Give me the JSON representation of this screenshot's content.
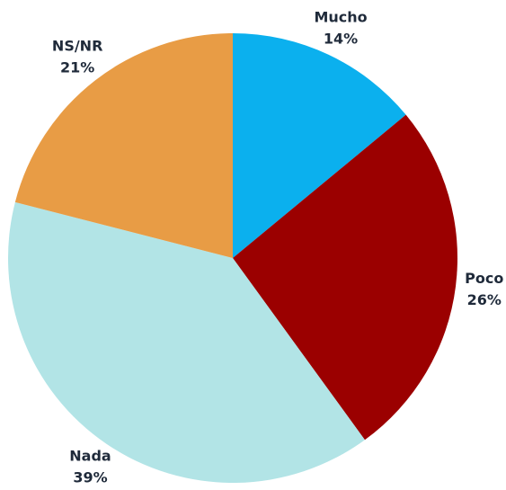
{
  "chart_data": {
    "type": "pie",
    "categories": [
      "Mucho",
      "Poco",
      "Nada",
      "NS/NR"
    ],
    "values": [
      14,
      26,
      39,
      21
    ],
    "value_labels": [
      "14%",
      "26%",
      "39%",
      "21%"
    ],
    "colors": [
      "#0bb0ee",
      "#9b0000",
      "#b2e4e6",
      "#e89c45"
    ]
  }
}
